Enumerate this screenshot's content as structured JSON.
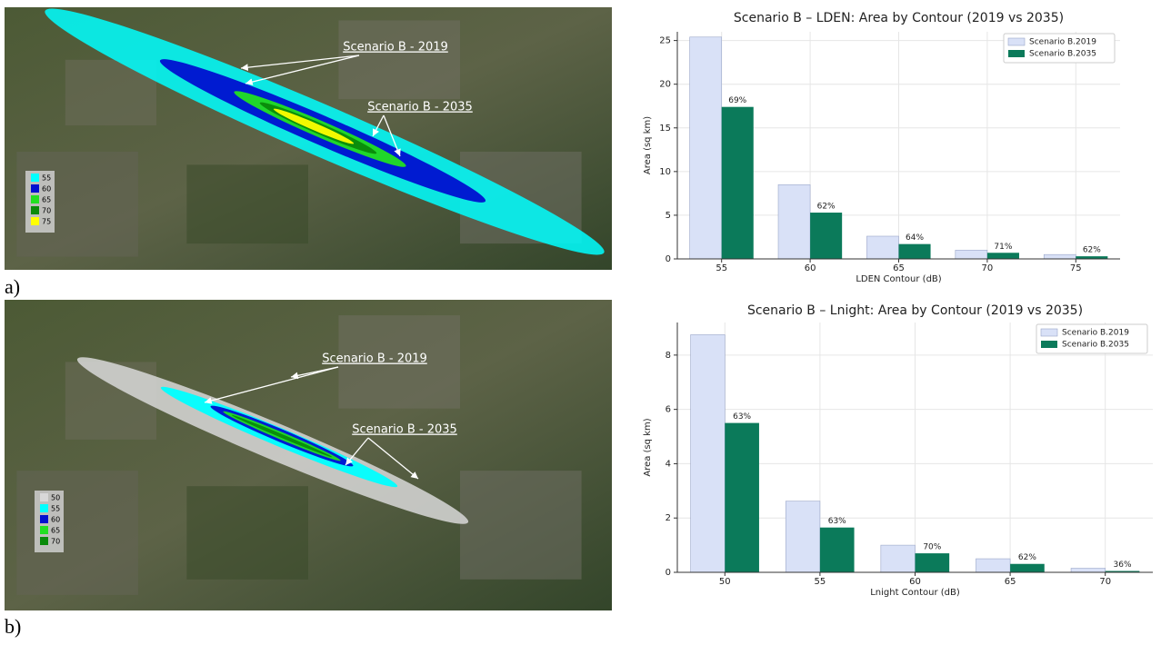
{
  "chart_data": [
    {
      "type": "bar",
      "title": "Scenario B – LDEN: Area by Contour (2019 vs 2035)",
      "x_label": "LDEN Contour (dB)",
      "y_label": "Area (sq km)",
      "categories": [
        "55",
        "60",
        "65",
        "70",
        "75"
      ],
      "series": [
        {
          "name": "Scenario B.2019",
          "color": "#d9e1f7",
          "values": [
            25.4,
            8.5,
            2.6,
            1.0,
            0.5
          ]
        },
        {
          "name": "Scenario B.2035",
          "color": "#0b7a5a",
          "values": [
            17.4,
            5.3,
            1.7,
            0.7,
            0.3
          ]
        }
      ],
      "bar_annotations": [
        "69%",
        "62%",
        "64%",
        "71%",
        "62%"
      ],
      "ylim": [
        0,
        26
      ],
      "yticks": [
        0,
        5,
        10,
        15,
        20,
        25
      ],
      "grid": true,
      "legend": "upper right"
    },
    {
      "type": "bar",
      "title": "Scenario B – Lnight: Area by Contour (2019 vs 2035)",
      "x_label": "Lnight Contour (dB)",
      "y_label": "Area (sq km)",
      "categories": [
        "50",
        "55",
        "60",
        "65",
        "70"
      ],
      "series": [
        {
          "name": "Scenario B.2019",
          "color": "#d9e1f7",
          "values": [
            8.75,
            2.62,
            1.0,
            0.5,
            0.15
          ]
        },
        {
          "name": "Scenario B.2035",
          "color": "#0b7a5a",
          "values": [
            5.5,
            1.65,
            0.7,
            0.31,
            0.05
          ]
        }
      ],
      "bar_annotations": [
        "63%",
        "63%",
        "70%",
        "62%",
        "36%"
      ],
      "ylim": [
        0,
        9.2
      ],
      "yticks": [
        0,
        2,
        4,
        6,
        8
      ],
      "grid": true,
      "legend": "upper right"
    }
  ],
  "maps": [
    {
      "panel_label": "a)",
      "annotations": [
        "Scenario B - 2019",
        "Scenario B - 2035"
      ],
      "legend": [
        {
          "label": "55",
          "color": "#00ffff"
        },
        {
          "label": "60",
          "color": "#0010d0"
        },
        {
          "label": "65",
          "color": "#22e022"
        },
        {
          "label": "70",
          "color": "#0a8a0a"
        },
        {
          "label": "75",
          "color": "#ffff00"
        }
      ]
    },
    {
      "panel_label": "b)",
      "annotations": [
        "Scenario B - 2019",
        "Scenario B - 2035"
      ],
      "legend": [
        {
          "label": "50",
          "color": "#d8d8d8"
        },
        {
          "label": "55",
          "color": "#00ffff"
        },
        {
          "label": "60",
          "color": "#0010d0"
        },
        {
          "label": "65",
          "color": "#22e022"
        },
        {
          "label": "70",
          "color": "#0a8a0a"
        }
      ]
    }
  ]
}
